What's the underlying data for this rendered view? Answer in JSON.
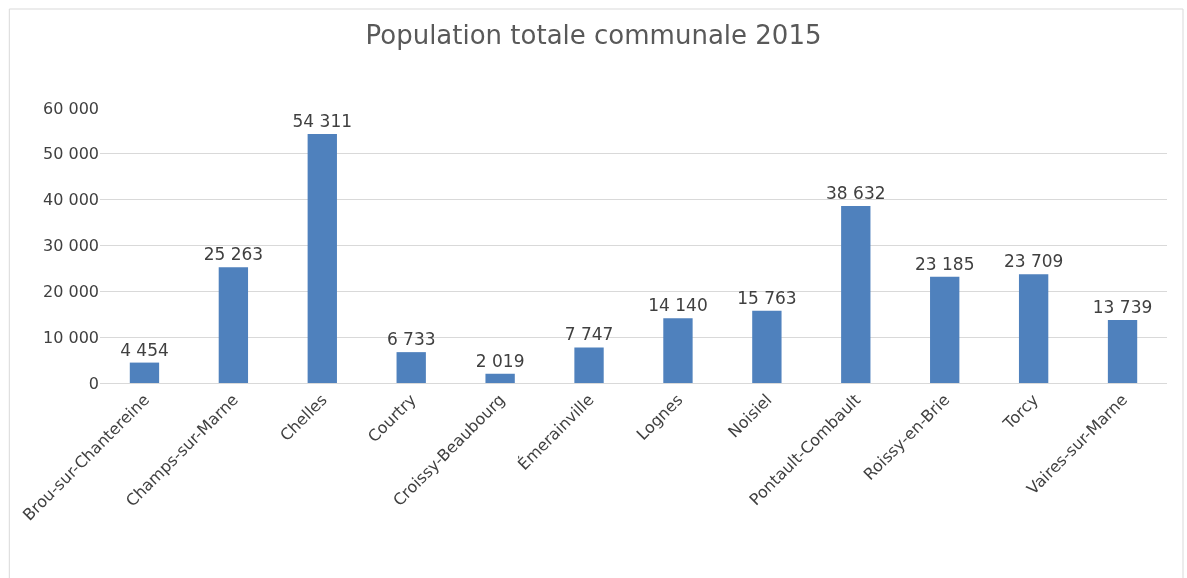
{
  "chart_data": {
    "type": "bar",
    "title": "Population totale communale 2015",
    "categories": [
      "Brou-sur-Chantereine",
      "Champs-sur-Marne",
      "Chelles",
      "Courtry",
      "Croissy-Beaubourg",
      "Émerainville",
      "Lognes",
      "Noisiel",
      "Pontault-Combault",
      "Roissy-en-Brie",
      "Torcy",
      "Vaires-sur-Marne"
    ],
    "values": [
      4454,
      25263,
      54311,
      6733,
      2019,
      7747,
      14140,
      15763,
      38632,
      23185,
      23709,
      13739
    ],
    "value_labels": [
      "4 454",
      "25 263",
      "54 311",
      "6 733",
      "2 019",
      "7 747",
      "14 140",
      "15 763",
      "38 632",
      "23 185",
      "23 709",
      "13 739"
    ],
    "color": "#4f81bd",
    "ylim": [
      0,
      60000
    ],
    "yticks": [
      {
        "value": 0,
        "label": "0"
      },
      {
        "value": 10000,
        "label": "10 000"
      },
      {
        "value": 20000,
        "label": "20 000"
      },
      {
        "value": 30000,
        "label": "30 000"
      },
      {
        "value": 40000,
        "label": "40 000"
      },
      {
        "value": 50000,
        "label": "50 000"
      },
      {
        "value": 60000,
        "label": "60 000"
      }
    ],
    "grid": "y",
    "legend": false
  }
}
